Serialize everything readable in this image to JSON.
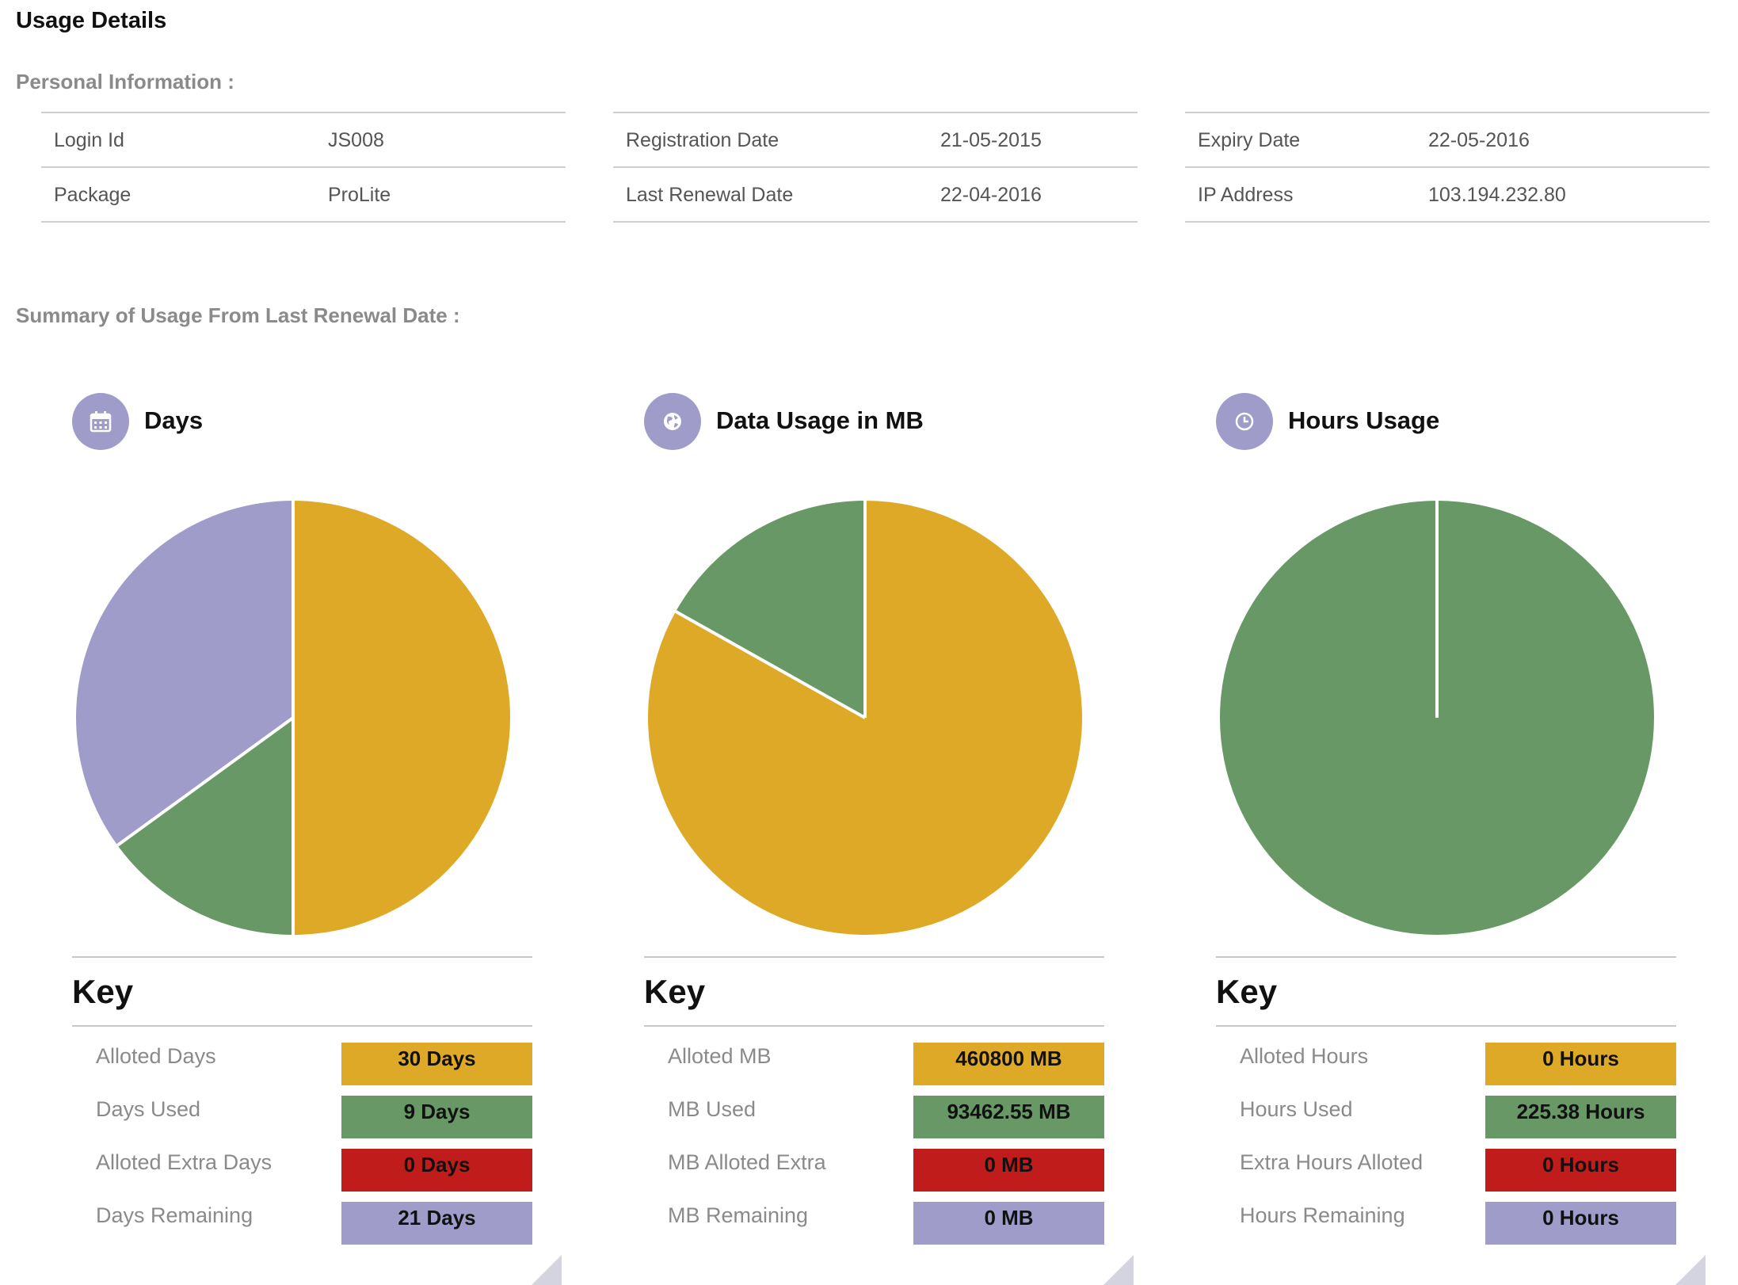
{
  "page_title": "Usage Details",
  "personal_info": {
    "heading": "Personal Information :",
    "tables": [
      [
        {
          "label": "Login Id",
          "value": "JS008"
        },
        {
          "label": "Package",
          "value": "ProLite"
        }
      ],
      [
        {
          "label": "Registration Date",
          "value": "21-05-2015"
        },
        {
          "label": "Last Renewal Date",
          "value": "22-04-2016"
        }
      ],
      [
        {
          "label": "Expiry Date",
          "value": "22-05-2016"
        },
        {
          "label": "IP Address",
          "value": "103.194.232.80"
        }
      ]
    ]
  },
  "summary_heading": "Summary of Usage From Last Renewal Date :",
  "colors": {
    "alloted": "#dea927",
    "used": "#689866",
    "extra": "#c01c1c",
    "remaining": "#9f9cc9",
    "icon_bg": "#9f9cc9"
  },
  "panels": [
    {
      "title": "Days",
      "icon": "calendar-icon",
      "key_title": "Key",
      "keys": [
        {
          "label": "Alloted Days",
          "value": "30 Days"
        },
        {
          "label": "Days Used",
          "value": "9 Days"
        },
        {
          "label": "Alloted Extra Days",
          "value": "0 Days"
        },
        {
          "label": "Days Remaining",
          "value": "21 Days"
        }
      ]
    },
    {
      "title": "Data Usage in MB",
      "icon": "globe-icon",
      "key_title": "Key",
      "keys": [
        {
          "label": "Alloted MB",
          "value": "460800 MB"
        },
        {
          "label": "MB Used",
          "value": "93462.55 MB"
        },
        {
          "label": "MB Alloted Extra",
          "value": "0 MB"
        },
        {
          "label": "MB Remaining",
          "value": "0 MB"
        }
      ]
    },
    {
      "title": "Hours Usage",
      "icon": "clock-icon",
      "key_title": "Key",
      "keys": [
        {
          "label": "Alloted Hours",
          "value": "0 Hours"
        },
        {
          "label": "Hours Used",
          "value": "225.38 Hours"
        },
        {
          "label": "Extra Hours Alloted",
          "value": "0 Hours"
        },
        {
          "label": "Hours Remaining",
          "value": "0 Hours"
        }
      ]
    }
  ],
  "chart_data": [
    {
      "type": "pie",
      "labels": [
        "Alloted Days",
        "Days Used",
        "Alloted Extra Days",
        "Days Remaining"
      ],
      "values": [
        30,
        9,
        0,
        21
      ],
      "colors": [
        "#dea927",
        "#689866",
        "#c01c1c",
        "#9f9cc9"
      ]
    },
    {
      "type": "pie",
      "labels": [
        "Alloted MB",
        "MB Used",
        "MB Alloted Extra",
        "MB Remaining"
      ],
      "values": [
        460800,
        93462.55,
        0,
        0
      ],
      "colors": [
        "#dea927",
        "#689866",
        "#c01c1c",
        "#9f9cc9"
      ]
    },
    {
      "type": "pie",
      "labels": [
        "Alloted Hours",
        "Hours Used",
        "Extra Hours Alloted",
        "Hours Remaining"
      ],
      "values": [
        0,
        225.38,
        0,
        0
      ],
      "colors": [
        "#dea927",
        "#689866",
        "#c01c1c",
        "#9f9cc9"
      ]
    }
  ]
}
